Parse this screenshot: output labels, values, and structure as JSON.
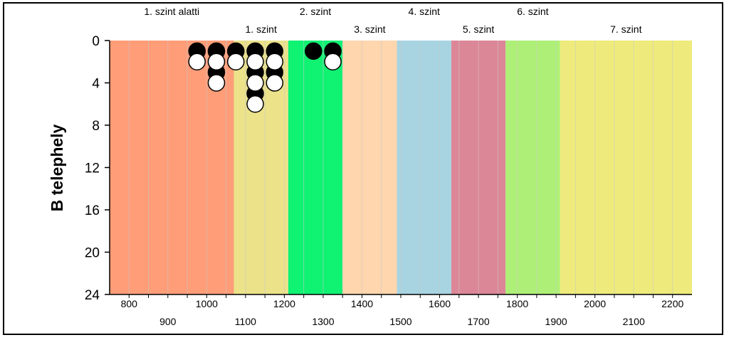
{
  "chart_data": {
    "type": "scatter",
    "title": "",
    "xlabel": "",
    "ylabel": "B telephely",
    "xlim": [
      750,
      2250
    ],
    "ylim": [
      0,
      24
    ],
    "y_inverted": true,
    "y_ticks": [
      0,
      4,
      8,
      12,
      16,
      20,
      24
    ],
    "x_ticks_lower_row": [
      900,
      1100,
      1300,
      1500,
      1700,
      1900,
      2100
    ],
    "x_ticks_upper_row": [
      800,
      1000,
      1200,
      1400,
      1600,
      1800,
      2000,
      2200
    ],
    "grid": "vertical minor lines every 50 units",
    "levels": [
      {
        "label": "1. szint alatti",
        "from": 750,
        "to": 1070,
        "color": "#fe9d78",
        "label_row": "top"
      },
      {
        "label": "1. szint",
        "from": 1070,
        "to": 1210,
        "color": "#ebe28a",
        "label_row": "second"
      },
      {
        "label": "2. szint",
        "from": 1210,
        "to": 1350,
        "color": "#10f272",
        "label_row": "top"
      },
      {
        "label": "3. szint",
        "from": 1350,
        "to": 1490,
        "color": "#ffd6ad",
        "label_row": "second"
      },
      {
        "label": "4. szint",
        "from": 1490,
        "to": 1630,
        "color": "#a8d4e2",
        "label_row": "top"
      },
      {
        "label": "5. szint",
        "from": 1630,
        "to": 1770,
        "color": "#dc8798",
        "label_row": "second"
      },
      {
        "label": "6. szint",
        "from": 1770,
        "to": 1910,
        "color": "#aef077",
        "label_row": "top"
      },
      {
        "label": "7. szint",
        "from": 1910,
        "to": 2250,
        "color": "#eeeb7c",
        "label_row": "second"
      }
    ],
    "series": [
      {
        "marker": "filled-black-circle",
        "points": [
          {
            "x": 975,
            "y": 1
          },
          {
            "x": 1025,
            "y": 1
          },
          {
            "x": 1075,
            "y": 1
          },
          {
            "x": 1125,
            "y": 1
          },
          {
            "x": 1175,
            "y": 1
          },
          {
            "x": 1025,
            "y": 3
          },
          {
            "x": 1125,
            "y": 3
          },
          {
            "x": 1175,
            "y": 3
          },
          {
            "x": 1125,
            "y": 5
          },
          {
            "x": 1275,
            "y": 1
          },
          {
            "x": 1325,
            "y": 1
          }
        ]
      },
      {
        "marker": "open-white-circle",
        "points": [
          {
            "x": 975,
            "y": 2
          },
          {
            "x": 1025,
            "y": 2
          },
          {
            "x": 1075,
            "y": 2
          },
          {
            "x": 1125,
            "y": 2
          },
          {
            "x": 1175,
            "y": 2
          },
          {
            "x": 1025,
            "y": 4
          },
          {
            "x": 1125,
            "y": 4
          },
          {
            "x": 1175,
            "y": 4
          },
          {
            "x": 1125,
            "y": 6
          },
          {
            "x": 1325,
            "y": 2
          }
        ]
      }
    ]
  }
}
